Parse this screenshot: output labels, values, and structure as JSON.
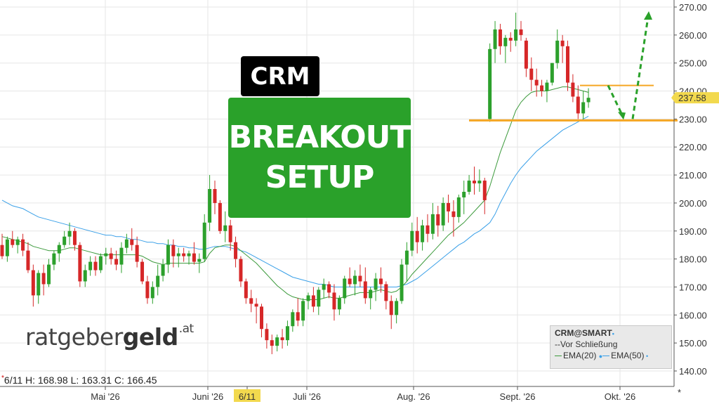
{
  "chart_data": {
    "type": "candlestick",
    "symbol": "CRM",
    "y_ticks": [
      "140.00",
      "150.00",
      "160.00",
      "170.00",
      "180.00",
      "190.00",
      "200.00",
      "210.00",
      "220.00",
      "230.00",
      "240.00",
      "250.00",
      "260.00",
      "270.00"
    ],
    "ylim": [
      135,
      272
    ],
    "x_labels": [
      "Mai '26",
      "Juni '26",
      "6/11",
      "Juli '26",
      "Aug. '26",
      "Sept. '26",
      "Okt. '26"
    ],
    "highlighted_date": "6/11",
    "last_price": "237.58",
    "support_level": 229.5,
    "resistance_level": 242.0,
    "projection": [
      242,
      230,
      268
    ],
    "up_color": "#2ca02c",
    "down_color": "#d62728",
    "ema20_color": "#3c9a3c",
    "ema50_color": "#3aa0e8",
    "level_color": "#f5a623",
    "arrow_color": "#2aa12a",
    "candles": [
      [
        185,
        189,
        180,
        181
      ],
      [
        181,
        188,
        179,
        187
      ],
      [
        187,
        190,
        184,
        185
      ],
      [
        185,
        188,
        182,
        187
      ],
      [
        187,
        189,
        181,
        183
      ],
      [
        183,
        186,
        175,
        176
      ],
      [
        176,
        178,
        163,
        167
      ],
      [
        167,
        176,
        164,
        175
      ],
      [
        175,
        178,
        167,
        171
      ],
      [
        171,
        180,
        170,
        178
      ],
      [
        178,
        183,
        176,
        182
      ],
      [
        182,
        186,
        179,
        185
      ],
      [
        185,
        190,
        184,
        188
      ],
      [
        188,
        193,
        185,
        190
      ],
      [
        190,
        191,
        183,
        185
      ],
      [
        185,
        186,
        170,
        172
      ],
      [
        172,
        178,
        170,
        176
      ],
      [
        176,
        181,
        174,
        179
      ],
      [
        179,
        181,
        174,
        176
      ],
      [
        176,
        182,
        175,
        181
      ],
      [
        181,
        184,
        178,
        182
      ],
      [
        182,
        184,
        178,
        180
      ],
      [
        180,
        183,
        176,
        178
      ],
      [
        178,
        186,
        175,
        184
      ],
      [
        184,
        189,
        182,
        187
      ],
      [
        187,
        191,
        183,
        185
      ],
      [
        185,
        188,
        177,
        179
      ],
      [
        179,
        180,
        171,
        172
      ],
      [
        172,
        174,
        164,
        166
      ],
      [
        166,
        172,
        164,
        170
      ],
      [
        170,
        178,
        167,
        174
      ],
      [
        174,
        180,
        172,
        178
      ],
      [
        178,
        187,
        175,
        185
      ],
      [
        185,
        187,
        177,
        181
      ],
      [
        181,
        184,
        177,
        182
      ],
      [
        182,
        184,
        179,
        181
      ],
      [
        181,
        183,
        178,
        182
      ],
      [
        182,
        186,
        178,
        179
      ],
      [
        179,
        182,
        175,
        180
      ],
      [
        180,
        196,
        179,
        193
      ],
      [
        193,
        210,
        190,
        205
      ],
      [
        205,
        208,
        196,
        200
      ],
      [
        200,
        201,
        189,
        190
      ],
      [
        190,
        197,
        186,
        192
      ],
      [
        192,
        194,
        183,
        186
      ],
      [
        186,
        188,
        177,
        180
      ],
      [
        180,
        181,
        170,
        172
      ],
      [
        172,
        173,
        164,
        166
      ],
      [
        166,
        169,
        161,
        164
      ],
      [
        164,
        166,
        157,
        163
      ],
      [
        163,
        164,
        152,
        155
      ],
      [
        155,
        157,
        148,
        151
      ],
      [
        151,
        153,
        146,
        149
      ],
      [
        149,
        153,
        147,
        152
      ],
      [
        152,
        155,
        148,
        151
      ],
      [
        151,
        158,
        149,
        156
      ],
      [
        156,
        162,
        154,
        161
      ],
      [
        161,
        166,
        156,
        158
      ],
      [
        158,
        166,
        156,
        165
      ],
      [
        165,
        168,
        162,
        167
      ],
      [
        167,
        170,
        161,
        163
      ],
      [
        163,
        170,
        160,
        169
      ],
      [
        169,
        173,
        166,
        171
      ],
      [
        171,
        172,
        166,
        168
      ],
      [
        168,
        171,
        158,
        162
      ],
      [
        162,
        167,
        160,
        166
      ],
      [
        166,
        174,
        164,
        173
      ],
      [
        173,
        177,
        170,
        171
      ],
      [
        171,
        176,
        167,
        174
      ],
      [
        174,
        178,
        170,
        172
      ],
      [
        172,
        177,
        164,
        166
      ],
      [
        166,
        170,
        162,
        169
      ],
      [
        169,
        175,
        165,
        173
      ],
      [
        173,
        177,
        168,
        171
      ],
      [
        171,
        172,
        162,
        165
      ],
      [
        165,
        167,
        155,
        160
      ],
      [
        160,
        166,
        157,
        165
      ],
      [
        165,
        180,
        164,
        178
      ],
      [
        178,
        186,
        172,
        183
      ],
      [
        183,
        193,
        181,
        190
      ],
      [
        190,
        195,
        182,
        186
      ],
      [
        186,
        194,
        183,
        192
      ],
      [
        192,
        196,
        186,
        189
      ],
      [
        189,
        200,
        187,
        196
      ],
      [
        196,
        199,
        188,
        192
      ],
      [
        192,
        202,
        190,
        200
      ],
      [
        200,
        203,
        193,
        197
      ],
      [
        197,
        201,
        188,
        195
      ],
      [
        195,
        203,
        193,
        202
      ],
      [
        202,
        208,
        196,
        204
      ],
      [
        204,
        210,
        203,
        208
      ],
      [
        208,
        213,
        203,
        207
      ],
      [
        207,
        212,
        204,
        208
      ],
      [
        208,
        209,
        196,
        201
      ],
      [
        230,
        257,
        229,
        255
      ],
      [
        255,
        265,
        250,
        262
      ],
      [
        262,
        264,
        253,
        256
      ],
      [
        256,
        260,
        250,
        259
      ],
      [
        259,
        261,
        254,
        258
      ],
      [
        258,
        268,
        256,
        262
      ],
      [
        262,
        265,
        258,
        260
      ],
      [
        258,
        259,
        245,
        248
      ],
      [
        248,
        252,
        240,
        244
      ],
      [
        244,
        248,
        238,
        242
      ],
      [
        242,
        244,
        238,
        240
      ],
      [
        240,
        244,
        236,
        243
      ],
      [
        243,
        250,
        242,
        250
      ],
      [
        250,
        262,
        248,
        258
      ],
      [
        258,
        260,
        250,
        256
      ],
      [
        256,
        258,
        240,
        243
      ],
      [
        243,
        246,
        236,
        238
      ],
      [
        238,
        242,
        230,
        232
      ],
      [
        232,
        240,
        230,
        236
      ],
      [
        236,
        241,
        234,
        237.58
      ]
    ],
    "ema20": [
      188,
      187.5,
      187,
      186.5,
      186,
      185.5,
      184.5,
      184,
      183.5,
      183,
      183,
      183,
      183.5,
      184,
      184,
      183.5,
      183,
      182.5,
      182,
      181.5,
      181.5,
      181.5,
      181.5,
      181.5,
      181.5,
      181.5,
      181.5,
      181,
      180,
      179,
      178.5,
      178,
      178.5,
      178.5,
      178.5,
      178.5,
      178.5,
      178.5,
      178.5,
      179,
      182,
      184,
      184.5,
      185,
      185,
      184.5,
      183,
      181.5,
      180,
      178.5,
      176.5,
      174.5,
      172.5,
      170.5,
      169,
      167.5,
      166.5,
      166,
      165.5,
      165.5,
      165.5,
      165.5,
      166,
      166.5,
      166,
      166,
      166.5,
      167,
      167.5,
      168,
      168,
      168,
      168.5,
      169,
      168.5,
      168,
      168.5,
      170,
      172,
      174.5,
      176.5,
      178.5,
      180.5,
      182.5,
      184.5,
      186.5,
      188.5,
      190,
      191.5,
      193,
      195,
      197,
      199,
      201,
      206,
      212,
      218,
      223,
      228,
      233,
      236,
      238,
      239.5,
      240,
      240,
      240,
      240.5,
      241,
      241.5,
      241.5,
      241,
      240.5,
      240,
      239.5
    ],
    "ema50": [
      201,
      200,
      199,
      198.5,
      198,
      197,
      196,
      195,
      194.5,
      194,
      193.5,
      193,
      192.5,
      192,
      191.5,
      191,
      190.5,
      190,
      189.5,
      189,
      188.5,
      188.5,
      188,
      188,
      187.5,
      187,
      187,
      186.5,
      186,
      186,
      185.5,
      185.5,
      185,
      185,
      184.5,
      184.5,
      184,
      184,
      183.5,
      183.5,
      184,
      184.5,
      184.5,
      184.5,
      184,
      183.5,
      183,
      182.5,
      181.5,
      180.5,
      179.5,
      178.5,
      177.5,
      176.5,
      175.5,
      174.5,
      173.5,
      173,
      172.5,
      172,
      171.5,
      171,
      171,
      170.5,
      170,
      170,
      170,
      170,
      170,
      170,
      170,
      170,
      170,
      170,
      170,
      170,
      170,
      170.5,
      171,
      172,
      173,
      174.5,
      176,
      177.5,
      179,
      180.5,
      182,
      183.5,
      185,
      186,
      187.5,
      189,
      190,
      191.5,
      193,
      196,
      200,
      203.5,
      207,
      210,
      212.5,
      214.5,
      216.5,
      218.5,
      220,
      221.5,
      223,
      224.5,
      226,
      227,
      228,
      229,
      230,
      231
    ]
  },
  "ohlc_readout": {
    "marker": "*",
    "text": "6/11 H: 168.98 L: 163.31 C: 166.45"
  },
  "legend": {
    "title": "CRM@SMART",
    "title_marker": "•",
    "row1": "Vor Schließung",
    "ema20_label": "EMA(20)",
    "ema50_label": "EMA(50)",
    "swatch_prefix": "--"
  },
  "logo": {
    "light": "ratgeber",
    "bold": "geld",
    "suffix": ".at"
  },
  "banner": {
    "ticker": "CRM",
    "line1": "BREAKOUT",
    "line2": "SETUP"
  },
  "corner_mark": "*"
}
